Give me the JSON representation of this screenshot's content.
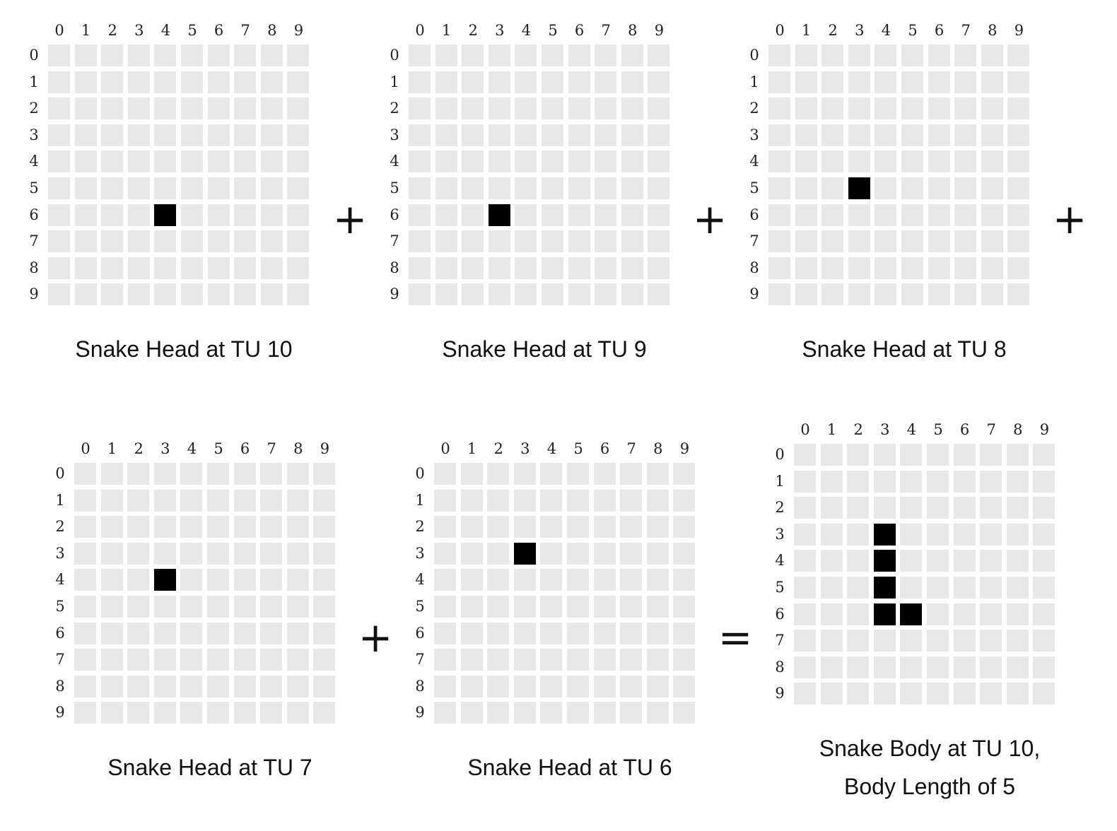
{
  "axis_labels": [
    "0",
    "1",
    "2",
    "3",
    "4",
    "5",
    "6",
    "7",
    "8",
    "9"
  ],
  "colors": {
    "empty_cell": "#e8e8e8",
    "filled_cell": "#000000"
  },
  "operators": [
    "+",
    "+",
    "+",
    "+",
    "="
  ],
  "panels": [
    {
      "caption": "Snake Head at TU 10",
      "filled": [
        [
          6,
          4
        ]
      ]
    },
    {
      "caption": "Snake Head at TU 9",
      "filled": [
        [
          6,
          3
        ]
      ]
    },
    {
      "caption": "Snake Head at TU 8",
      "filled": [
        [
          5,
          3
        ]
      ]
    },
    {
      "caption": "Snake Head at TU 7",
      "filled": [
        [
          4,
          3
        ]
      ]
    },
    {
      "caption": "Snake Head at TU 6",
      "filled": [
        [
          3,
          3
        ]
      ]
    },
    {
      "caption": "Snake Body at TU 10,\nBody Length of 5",
      "caption_lines": [
        "Snake Body at TU 10,",
        "Body Length of 5"
      ],
      "filled": [
        [
          3,
          3
        ],
        [
          4,
          3
        ],
        [
          5,
          3
        ],
        [
          6,
          3
        ],
        [
          6,
          4
        ]
      ]
    }
  ]
}
